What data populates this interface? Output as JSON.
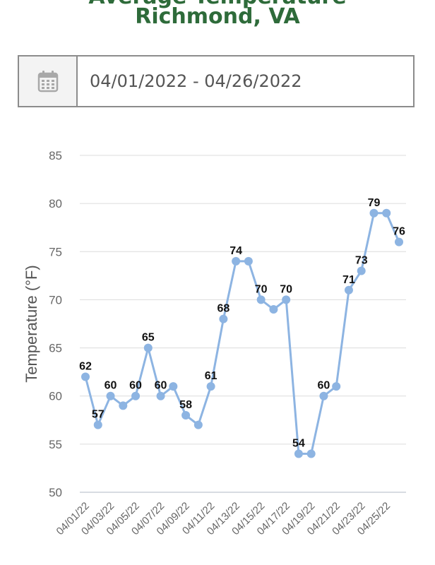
{
  "header": {
    "title_line1": "Average Temperature",
    "title_line2": "Richmond, VA"
  },
  "date_range": {
    "value": "04/01/2022 - 04/26/2022",
    "icon": "calendar-icon"
  },
  "colors": {
    "title": "#2e6b3a",
    "line": "#8db4e2",
    "point": "#8db4e2"
  },
  "chart_data": {
    "type": "line",
    "ylabel": "Temperature (°F)",
    "xlabel": "",
    "ylim": [
      50,
      85
    ],
    "yticks": [
      50,
      55,
      60,
      65,
      70,
      75,
      80,
      85
    ],
    "grid": true,
    "x": [
      "04/01/22",
      "04/02/22",
      "04/03/22",
      "04/04/22",
      "04/05/22",
      "04/06/22",
      "04/07/22",
      "04/08/22",
      "04/09/22",
      "04/10/22",
      "04/11/22",
      "04/12/22",
      "04/13/22",
      "04/14/22",
      "04/15/22",
      "04/16/22",
      "04/17/22",
      "04/18/22",
      "04/19/22",
      "04/20/22",
      "04/21/22",
      "04/22/22",
      "04/23/22",
      "04/24/22",
      "04/25/22",
      "04/26/22"
    ],
    "xtick_labels": [
      "04/01/22",
      "04/03/22",
      "04/05/22",
      "04/07/22",
      "04/09/22",
      "04/11/22",
      "04/13/22",
      "04/15/22",
      "04/17/22",
      "04/19/22",
      "04/21/22",
      "04/23/22",
      "04/25/22"
    ],
    "series": [
      {
        "values": [
          62,
          57,
          60,
          59,
          60,
          65,
          60,
          61,
          58,
          57,
          61,
          68,
          74,
          74,
          70,
          69,
          70,
          54,
          54,
          60,
          61,
          71,
          73,
          79,
          79,
          76
        ]
      }
    ],
    "data_labels": [
      {
        "index": 0,
        "text": "62"
      },
      {
        "index": 1,
        "text": "57"
      },
      {
        "index": 2,
        "text": "60"
      },
      {
        "index": 4,
        "text": "60"
      },
      {
        "index": 5,
        "text": "65"
      },
      {
        "index": 6,
        "text": "60"
      },
      {
        "index": 8,
        "text": "58"
      },
      {
        "index": 10,
        "text": "61"
      },
      {
        "index": 11,
        "text": "68"
      },
      {
        "index": 12,
        "text": "74"
      },
      {
        "index": 14,
        "text": "70"
      },
      {
        "index": 16,
        "text": "70"
      },
      {
        "index": 17,
        "text": "54"
      },
      {
        "index": 19,
        "text": "60"
      },
      {
        "index": 21,
        "text": "71"
      },
      {
        "index": 22,
        "text": "73"
      },
      {
        "index": 23,
        "text": "79"
      },
      {
        "index": 25,
        "text": "76"
      }
    ]
  }
}
